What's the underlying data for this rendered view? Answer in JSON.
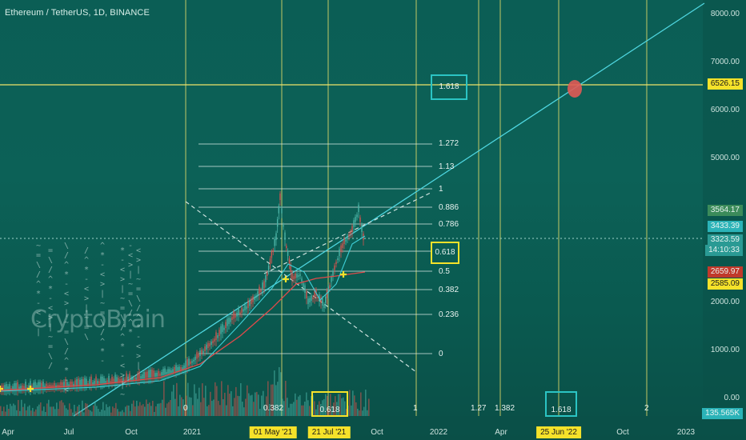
{
  "header": {
    "title": "Ethereum / TetherUS, 1D, BINANCE"
  },
  "watermark": "CryptoBrain",
  "price_axis": {
    "ticks": [
      "8000.00",
      "7000.00",
      "6000.00",
      "5000.00",
      "2000.00",
      "1000.00",
      "0.00"
    ],
    "labels": {
      "target": "6526.15",
      "high_ma": "3564.17",
      "last_a": "3433.39",
      "last_b": "3323.59",
      "countdown": "14:10:33",
      "red_ma": "2659.97",
      "yellow_ma": "2585.09",
      "volume": "135.565K"
    }
  },
  "time_axis": {
    "ticks": [
      "Apr",
      "Jul",
      "Oct",
      "2021",
      "Oct",
      "2022",
      "Apr",
      "Oct",
      "2023"
    ],
    "markers": [
      "01 May '21",
      "21 Jul '21",
      "25 Jun '22"
    ]
  },
  "fib_retracement": [
    "1.618",
    "1.272",
    "1.13",
    "1",
    "0.886",
    "0.786",
    "0.618",
    "0.5",
    "0.382",
    "0.236",
    "0"
  ],
  "time_zones": [
    "0",
    "0.382",
    "0.618",
    "1",
    "1.27",
    "1.382",
    "1.618",
    "2"
  ],
  "colors": {
    "background": "#0b5e55",
    "fib_line": "#d9e9e5",
    "trend_line": "#4fd6e0",
    "timezone_line": "#f0e36a",
    "box_cyan": "#2bc4c4",
    "box_yellow": "#f5e22a",
    "target_dot": "#e05a55",
    "price_up": "#4bb3a6",
    "price_down": "#d4534f"
  }
}
